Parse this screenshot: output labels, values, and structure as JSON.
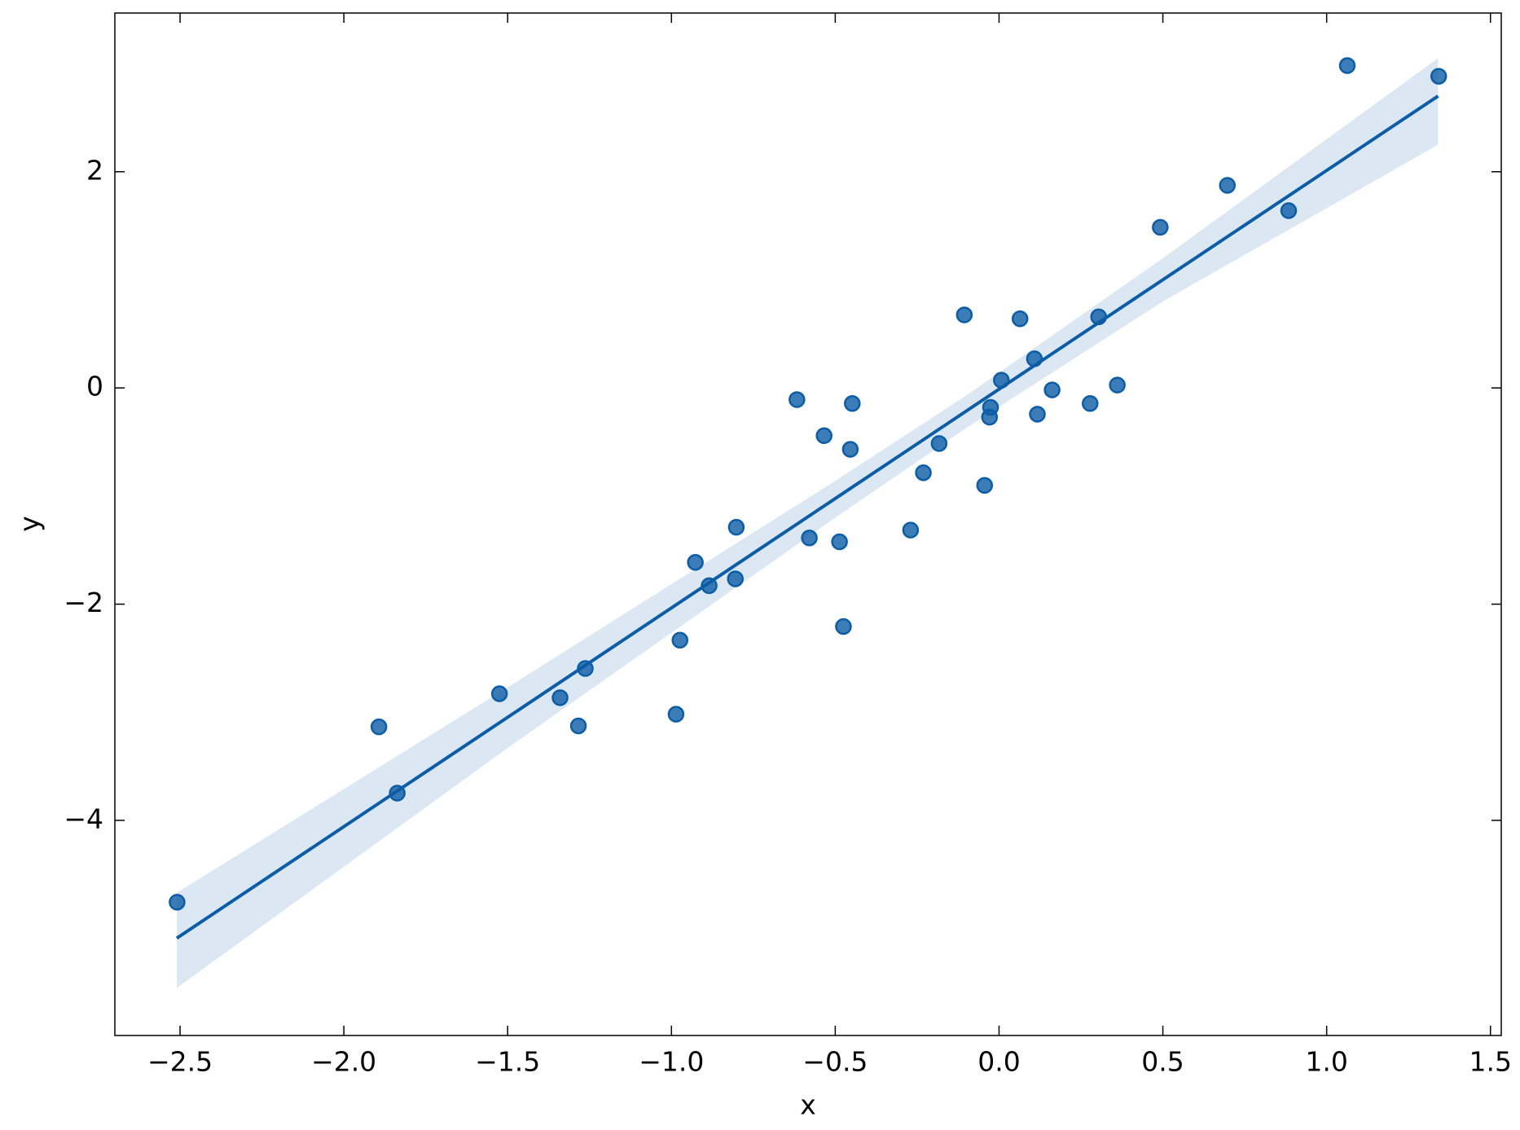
{
  "chart_data": {
    "type": "scatter",
    "x_label": "x",
    "y_label": "y",
    "color": "#0c5da5",
    "xlim": [
      -2.699,
      1.533
    ],
    "ylim": [
      -5.99,
      3.468
    ],
    "xticks": [
      {
        "value": -2.5,
        "label": "−2.5"
      },
      {
        "value": -2.0,
        "label": "−2.0"
      },
      {
        "value": -1.5,
        "label": "−1.5"
      },
      {
        "value": -1.0,
        "label": "−1.0"
      },
      {
        "value": -0.5,
        "label": "−0.5"
      },
      {
        "value": 0,
        "label": "0.0"
      },
      0.5,
      {
        "value": 1,
        "label": "1.0"
      },
      1.5
    ],
    "yticks": [
      {
        "value": -4,
        "label": "−4"
      },
      {
        "value": -2,
        "label": "−2"
      },
      0,
      2
    ],
    "x": [
      -2.509,
      -1.893,
      -1.837,
      -1.525,
      -1.34,
      -1.284,
      -1.263,
      -0.986,
      -0.974,
      -0.927,
      -0.885,
      -0.805,
      -0.802,
      -0.617,
      -0.579,
      -0.534,
      -0.487,
      -0.475,
      -0.454,
      -0.448,
      -0.27,
      -0.231,
      -0.183,
      -0.106,
      -0.044,
      -0.029,
      -0.026,
      0.007,
      0.064,
      0.108,
      0.117,
      0.162,
      0.278,
      0.304,
      0.361,
      0.492,
      0.697,
      0.884,
      1.063,
      1.342
    ],
    "values": [
      -4.757,
      -3.135,
      -3.748,
      -2.829,
      -2.865,
      -3.126,
      -2.595,
      -3.018,
      -2.333,
      -1.613,
      -1.829,
      -1.766,
      -1.288,
      -0.108,
      -1.387,
      -0.441,
      -1.423,
      -2.207,
      -0.568,
      -0.144,
      -1.315,
      -0.784,
      -0.514,
      0.676,
      -0.901,
      -0.27,
      -0.18,
      0.072,
      0.64,
      0.27,
      -0.243,
      -0.018,
      -0.144,
      0.658,
      0.027,
      1.486,
      1.874,
      1.64,
      2.982,
      2.883
    ],
    "fit": {
      "x": [
        -2.51,
        1.34
      ],
      "values": [
        -5.09,
        2.7
      ]
    },
    "band": {
      "x": [
        -2.51,
        -1.5,
        -0.5,
        -0.1,
        0.5,
        1.34
      ],
      "lower": [
        -5.55,
        -3.33,
        -1.2,
        -0.37,
        0.8,
        2.25
      ],
      "upper": [
        -4.67,
        -2.77,
        -0.86,
        -0.07,
        1.2,
        3.05
      ]
    }
  }
}
